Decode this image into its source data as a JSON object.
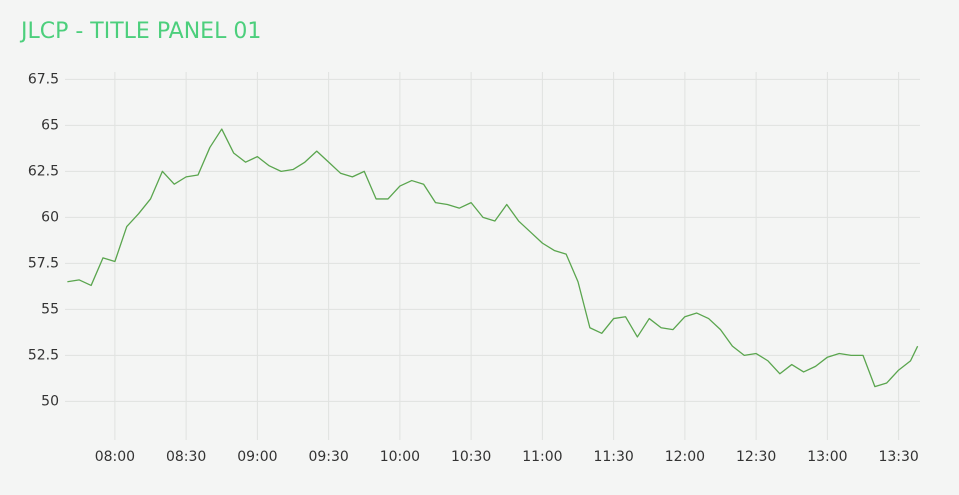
{
  "chart_data": {
    "type": "line",
    "title": "JLCP - TITLE PANEL 01",
    "color": "#5aa54e",
    "grid": true,
    "x": [
      "07:40",
      "07:45",
      "07:50",
      "07:55",
      "08:00",
      "08:05",
      "08:10",
      "08:15",
      "08:20",
      "08:25",
      "08:30",
      "08:35",
      "08:40",
      "08:45",
      "08:50",
      "08:55",
      "09:00",
      "09:05",
      "09:10",
      "09:15",
      "09:20",
      "09:25",
      "09:30",
      "09:35",
      "09:40",
      "09:45",
      "09:50",
      "09:55",
      "10:00",
      "10:05",
      "10:10",
      "10:15",
      "10:20",
      "10:25",
      "10:30",
      "10:35",
      "10:40",
      "10:45",
      "10:50",
      "10:55",
      "11:00",
      "11:05",
      "11:10",
      "11:15",
      "11:20",
      "11:25",
      "11:30",
      "11:35",
      "11:40",
      "11:45",
      "11:50",
      "11:55",
      "12:00",
      "12:05",
      "12:10",
      "12:15",
      "12:20",
      "12:25",
      "12:30",
      "12:35",
      "12:40",
      "12:45",
      "12:50",
      "12:55",
      "13:00",
      "13:05",
      "13:10",
      "13:15",
      "13:20",
      "13:25",
      "13:30",
      "13:35",
      "13:38"
    ],
    "values": [
      56.5,
      56.6,
      56.3,
      57.8,
      57.6,
      59.5,
      60.2,
      61.0,
      62.5,
      61.8,
      62.2,
      62.3,
      63.8,
      64.8,
      63.5,
      63.0,
      63.3,
      62.8,
      62.5,
      62.6,
      63.0,
      63.6,
      63.0,
      62.4,
      62.2,
      62.5,
      61.0,
      61.0,
      61.7,
      62.0,
      61.8,
      60.8,
      60.7,
      60.5,
      60.8,
      60.0,
      59.8,
      60.7,
      59.8,
      59.2,
      58.6,
      58.2,
      58.0,
      56.5,
      54.0,
      53.7,
      54.5,
      54.6,
      53.5,
      54.5,
      54.0,
      53.9,
      54.6,
      54.8,
      54.5,
      53.9,
      53.0,
      52.5,
      52.6,
      52.2,
      51.5,
      52.0,
      51.6,
      51.9,
      52.4,
      52.6,
      52.5,
      52.5,
      50.8,
      51.0,
      51.7,
      52.2,
      53.0
    ],
    "xlim": [
      "07:39",
      "13:39"
    ],
    "xticks": [
      "08:00",
      "08:30",
      "09:00",
      "09:30",
      "10:00",
      "10:30",
      "11:00",
      "11:30",
      "12:00",
      "12:30",
      "13:00",
      "13:30"
    ],
    "ylim": [
      47.9,
      67.9
    ],
    "yticks": [
      50,
      52.5,
      55,
      57.5,
      60,
      62.5,
      65,
      67.5
    ]
  }
}
